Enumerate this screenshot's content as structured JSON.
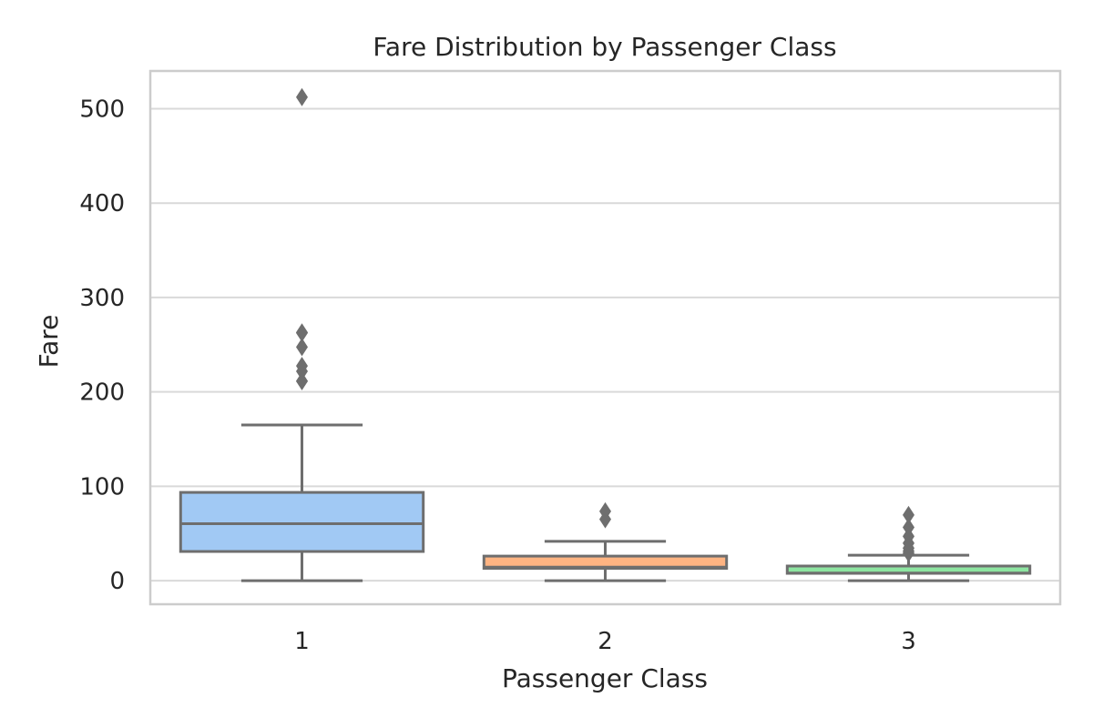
{
  "chart_data": {
    "type": "box",
    "title": "Fare Distribution by Passenger Class",
    "xlabel": "Passenger Class",
    "ylabel": "Fare",
    "ylim": [
      -25,
      540
    ],
    "yticks": [
      0,
      100,
      200,
      300,
      400,
      500
    ],
    "grid": true,
    "categories": [
      "1",
      "2",
      "3"
    ],
    "boxes": [
      {
        "category": "1",
        "color": "#a1c9f4",
        "whisker_low": 0,
        "q1": 30.9,
        "median": 60.3,
        "q3": 93.5,
        "whisker_high": 164.9,
        "outliers": [
          211.3,
          211.5,
          221.8,
          227.5,
          247.5,
          262.4,
          263.0,
          512.3
        ]
      },
      {
        "category": "2",
        "color": "#ffb482",
        "whisker_low": 0,
        "q1": 13.0,
        "median": 14.3,
        "q3": 26.0,
        "whisker_high": 41.6,
        "outliers": [
          65.0,
          73.5
        ]
      },
      {
        "category": "3",
        "color": "#8de5a1",
        "whisker_low": 0,
        "q1": 7.75,
        "median": 8.05,
        "q3": 15.5,
        "whisker_high": 27.0,
        "outliers": [
          29.1,
          31.3,
          34.4,
          39.7,
          46.9,
          56.5,
          69.6
        ]
      }
    ]
  }
}
